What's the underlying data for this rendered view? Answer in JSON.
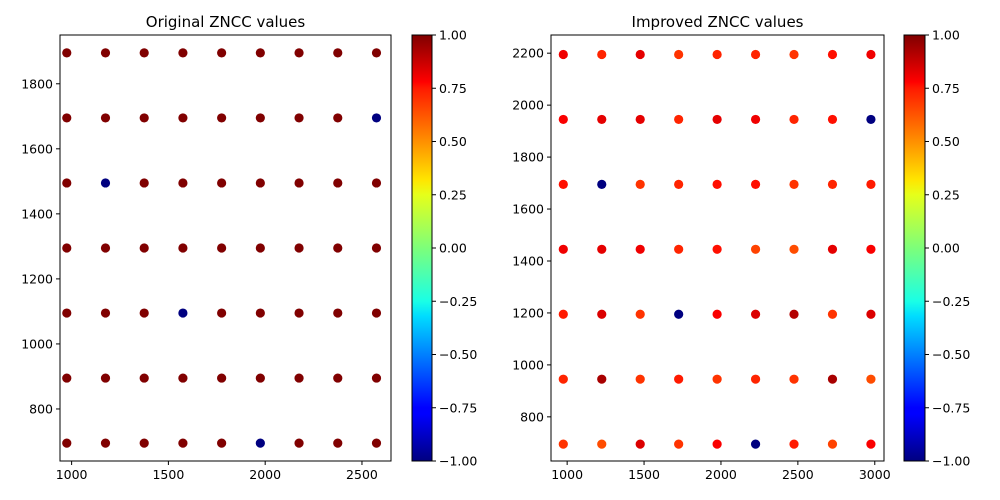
{
  "chart_data": [
    {
      "type": "scatter",
      "title": "Original ZNCC values",
      "xlabel": "",
      "ylabel": "",
      "xlim": [
        940,
        2650
      ],
      "ylim": [
        640,
        1950
      ],
      "xticks": [
        1000,
        1500,
        2000,
        2500
      ],
      "yticks": [
        800,
        1000,
        1200,
        1400,
        1600,
        1800
      ],
      "x": [
        975,
        1175,
        1375,
        1575,
        1775,
        1975,
        2175,
        2375,
        2575
      ],
      "y": [
        1895,
        1695,
        1495,
        1295,
        1095,
        895,
        695
      ],
      "values": [
        [
          1.0,
          1.0,
          1.0,
          1.0,
          1.0,
          1.0,
          1.0,
          1.0,
          1.0
        ],
        [
          1.0,
          1.0,
          1.0,
          1.0,
          1.0,
          1.0,
          1.0,
          1.0,
          -1.0
        ],
        [
          1.0,
          -1.0,
          1.0,
          1.0,
          1.0,
          1.0,
          1.0,
          1.0,
          1.0
        ],
        [
          1.0,
          1.0,
          1.0,
          1.0,
          1.0,
          1.0,
          1.0,
          1.0,
          1.0
        ],
        [
          1.0,
          1.0,
          1.0,
          -1.0,
          1.0,
          1.0,
          1.0,
          1.0,
          1.0
        ],
        [
          1.0,
          1.0,
          1.0,
          1.0,
          1.0,
          1.0,
          1.0,
          1.0,
          1.0
        ],
        [
          1.0,
          1.0,
          1.0,
          1.0,
          1.0,
          -1.0,
          1.0,
          1.0,
          1.0
        ]
      ],
      "colorbar": {
        "colormap": "jet",
        "range": [
          -1.0,
          1.0
        ],
        "ticks": [
          -1.0,
          -0.75,
          -0.5,
          -0.25,
          0.0,
          0.25,
          0.5,
          0.75,
          1.0
        ],
        "tick_labels": [
          "−1.00",
          "−0.75",
          "−0.50",
          "−0.25",
          "0.00",
          "0.25",
          "0.50",
          "0.75",
          "1.00"
        ]
      },
      "grid": false
    },
    {
      "type": "scatter",
      "title": "Improved ZNCC values",
      "xlabel": "",
      "ylabel": "",
      "xlim": [
        895,
        3060
      ],
      "ylim": [
        630,
        2270
      ],
      "xticks": [
        1000,
        1500,
        2000,
        2500,
        3000
      ],
      "yticks": [
        800,
        1000,
        1200,
        1400,
        1600,
        1800,
        2000,
        2200
      ],
      "x": [
        975,
        1225,
        1475,
        1725,
        1975,
        2225,
        2475,
        2725,
        2975
      ],
      "y": [
        2195,
        1945,
        1695,
        1445,
        1195,
        945,
        695
      ],
      "values": [
        [
          0.78,
          0.68,
          0.8,
          0.65,
          0.68,
          0.68,
          0.65,
          0.72,
          0.78
        ],
        [
          0.76,
          0.8,
          0.8,
          0.68,
          0.8,
          0.78,
          0.68,
          0.72,
          -1.0
        ],
        [
          0.72,
          -1.0,
          0.65,
          0.68,
          0.72,
          0.72,
          0.65,
          0.68,
          0.7
        ],
        [
          0.78,
          0.8,
          0.78,
          0.68,
          0.72,
          0.62,
          0.6,
          0.8,
          0.76
        ],
        [
          0.7,
          0.82,
          0.65,
          -1.0,
          0.76,
          0.82,
          0.9,
          0.65,
          0.82
        ],
        [
          0.68,
          0.92,
          0.65,
          0.7,
          0.65,
          0.68,
          0.65,
          0.92,
          0.6
        ],
        [
          0.65,
          0.6,
          0.82,
          0.65,
          0.76,
          -1.0,
          0.7,
          0.62,
          0.76
        ]
      ],
      "colorbar": {
        "colormap": "jet",
        "range": [
          -1.0,
          1.0
        ],
        "ticks": [
          -1.0,
          -0.75,
          -0.5,
          -0.25,
          0.0,
          0.25,
          0.5,
          0.75,
          1.0
        ],
        "tick_labels": [
          "−1.00",
          "−0.75",
          "−0.50",
          "−0.25",
          "0.00",
          "0.25",
          "0.50",
          "0.75",
          "1.00"
        ]
      },
      "grid": false
    }
  ]
}
